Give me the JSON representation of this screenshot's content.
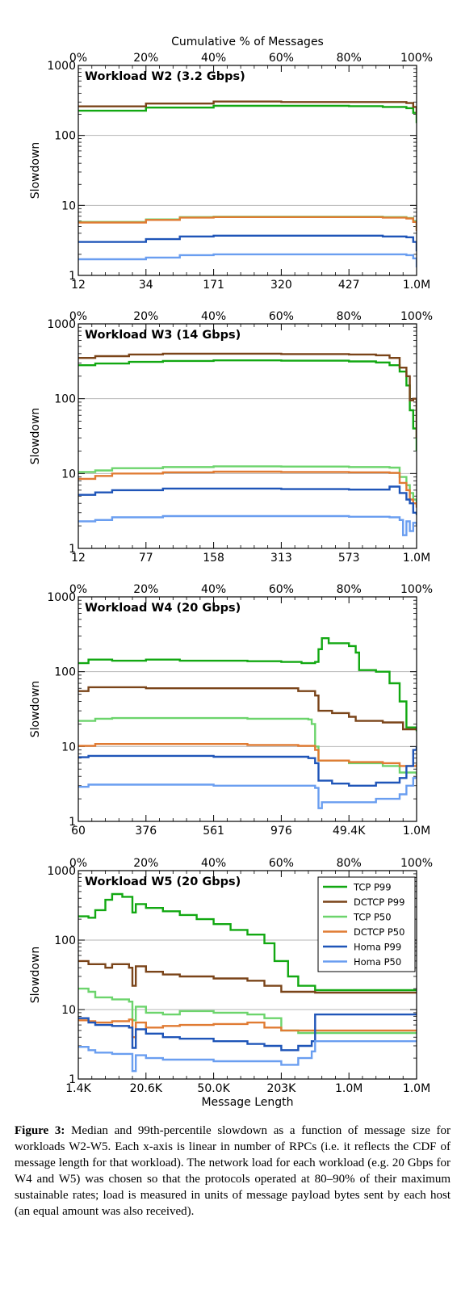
{
  "top_axis_label": "Cumulative % of Messages",
  "top_ticks": [
    "0%",
    "20%",
    "40%",
    "60%",
    "80%",
    "100%"
  ],
  "bottom_axis_label": "Message Length",
  "legend": [
    {
      "label": "TCP P99",
      "color": "#12a812"
    },
    {
      "label": "DCTCP P99",
      "color": "#7a4419"
    },
    {
      "label": "TCP P50",
      "color": "#6cd46c"
    },
    {
      "label": "DCTCP P50",
      "color": "#e07b33"
    },
    {
      "label": "Homa P99",
      "color": "#1f55b8"
    },
    {
      "label": "Homa P50",
      "color": "#6a9ef0"
    }
  ],
  "caption": {
    "label": "Figure 3:",
    "text": "Median and 99th-percentile slowdown as a function of message size for workloads W2-W5. Each x-axis is linear in number of RPCs (i.e. it reflects the CDF of message length for that workload). The network load for each workload (e.g. 20 Gbps for W4 and W5) was chosen so that the protocols operated at 80–90% of their maximum sustainable rates; load is measured in units of message payload bytes sent by each host (an equal amount was also received)."
  },
  "chart_data": [
    {
      "type": "line",
      "title": "Workload W2 (3.2 Gbps)",
      "ylabel": "Slowdown",
      "yscale": "log",
      "ylim": [
        1,
        1000
      ],
      "yticks": [
        "1",
        "10",
        "100",
        "1000"
      ],
      "xlim": [
        0,
        100
      ],
      "x_tick_labels": [
        "12",
        "34",
        "171",
        "320",
        "427",
        "1.0M"
      ],
      "grid": "horizontal",
      "series": [
        {
          "name": "TCP P99",
          "x": [
            0,
            16,
            20,
            40,
            60,
            80,
            90,
            97,
            99,
            100
          ],
          "y": [
            225,
            225,
            250,
            265,
            265,
            262,
            255,
            245,
            210,
            150
          ]
        },
        {
          "name": "DCTCP P99",
          "x": [
            0,
            16,
            20,
            40,
            60,
            80,
            90,
            97,
            99,
            100
          ],
          "y": [
            260,
            260,
            285,
            305,
            300,
            300,
            300,
            290,
            255,
            200
          ]
        },
        {
          "name": "TCP P50",
          "x": [
            0,
            16,
            20,
            30,
            40,
            60,
            80,
            90,
            97,
            99,
            100
          ],
          "y": [
            5.8,
            5.8,
            6.3,
            6.8,
            6.9,
            6.9,
            6.9,
            6.8,
            6.6,
            6.0,
            4.5
          ]
        },
        {
          "name": "DCTCP P50",
          "x": [
            0,
            16,
            20,
            30,
            40,
            60,
            80,
            90,
            97,
            99,
            100
          ],
          "y": [
            5.7,
            5.7,
            6.2,
            6.7,
            6.8,
            6.8,
            6.8,
            6.7,
            6.5,
            5.8,
            4.3
          ]
        },
        {
          "name": "Homa P99",
          "x": [
            0,
            16,
            20,
            30,
            40,
            60,
            80,
            90,
            97,
            99,
            100
          ],
          "y": [
            3.0,
            3.0,
            3.3,
            3.6,
            3.7,
            3.7,
            3.7,
            3.6,
            3.5,
            3.0,
            2.2
          ]
        },
        {
          "name": "Homa P50",
          "x": [
            0,
            16,
            20,
            30,
            40,
            60,
            80,
            90,
            97,
            99,
            100
          ],
          "y": [
            1.7,
            1.7,
            1.8,
            1.95,
            2.0,
            2.0,
            2.0,
            2.0,
            1.95,
            1.75,
            1.3
          ]
        }
      ]
    },
    {
      "type": "line",
      "title": "Workload W3 (14 Gbps)",
      "ylabel": "Slowdown",
      "yscale": "log",
      "ylim": [
        1,
        1000
      ],
      "yticks": [
        "1",
        "10",
        "100",
        "1000"
      ],
      "xlim": [
        0,
        100
      ],
      "x_tick_labels": [
        "12",
        "77",
        "158",
        "313",
        "573",
        "1.0M"
      ],
      "grid": "horizontal",
      "series": [
        {
          "name": "TCP P99",
          "x": [
            0,
            5,
            15,
            25,
            40,
            60,
            80,
            88,
            92,
            95,
            97,
            98,
            99,
            100
          ],
          "y": [
            280,
            295,
            310,
            320,
            325,
            322,
            315,
            305,
            280,
            230,
            150,
            70,
            40,
            20
          ]
        },
        {
          "name": "DCTCP P99",
          "x": [
            0,
            5,
            15,
            25,
            40,
            60,
            80,
            88,
            92,
            95,
            97,
            98,
            99,
            100
          ],
          "y": [
            350,
            370,
            390,
            400,
            400,
            395,
            390,
            380,
            350,
            260,
            200,
            95,
            100,
            30
          ]
        },
        {
          "name": "TCP P50",
          "x": [
            0,
            5,
            10,
            25,
            40,
            60,
            80,
            92,
            95,
            97,
            98,
            99,
            100
          ],
          "y": [
            10.5,
            11,
            11.8,
            12.2,
            12.5,
            12.4,
            12.2,
            12.0,
            9.0,
            7.0,
            5.5,
            4.5,
            3.8
          ]
        },
        {
          "name": "DCTCP P50",
          "x": [
            0,
            5,
            10,
            25,
            40,
            60,
            80,
            92,
            95,
            97,
            98,
            99,
            100
          ],
          "y": [
            8.5,
            9.3,
            10.0,
            10.4,
            10.6,
            10.5,
            10.4,
            10.2,
            7.5,
            6.0,
            4.5,
            4.0,
            3.5
          ]
        },
        {
          "name": "Homa P99",
          "x": [
            0,
            5,
            10,
            25,
            40,
            60,
            80,
            88,
            92,
            95,
            97,
            98,
            99,
            100
          ],
          "y": [
            5.2,
            5.6,
            6.0,
            6.3,
            6.3,
            6.2,
            6.1,
            6.1,
            6.7,
            5.5,
            4.5,
            4.0,
            3.0,
            2.8
          ]
        },
        {
          "name": "Homa P50",
          "x": [
            0,
            5,
            10,
            25,
            40,
            60,
            80,
            92,
            95,
            96,
            97,
            98,
            99,
            100
          ],
          "y": [
            2.3,
            2.4,
            2.6,
            2.7,
            2.7,
            2.7,
            2.65,
            2.6,
            2.4,
            1.5,
            2.3,
            1.7,
            2.2,
            2.0
          ]
        }
      ]
    },
    {
      "type": "line",
      "title": "Workload W4 (20 Gbps)",
      "ylabel": "Slowdown",
      "yscale": "log",
      "ylim": [
        1,
        1000
      ],
      "yticks": [
        "1",
        "10",
        "100",
        "1000"
      ],
      "xlim": [
        0,
        100
      ],
      "x_tick_labels": [
        "60",
        "376",
        "561",
        "976",
        "49.4K",
        "1.0M"
      ],
      "grid": "horizontal",
      "series": [
        {
          "name": "TCP P99",
          "x": [
            0,
            3,
            10,
            20,
            30,
            40,
            50,
            60,
            66,
            70,
            71,
            72,
            74,
            80,
            82,
            83,
            88,
            92,
            95,
            97,
            100
          ],
          "y": [
            130,
            145,
            140,
            145,
            140,
            140,
            138,
            135,
            130,
            135,
            200,
            280,
            240,
            220,
            180,
            105,
            100,
            70,
            40,
            18,
            16
          ]
        },
        {
          "name": "DCTCP P99",
          "x": [
            0,
            3,
            20,
            40,
            55,
            65,
            70,
            71,
            75,
            80,
            82,
            90,
            96,
            100
          ],
          "y": [
            55,
            62,
            60,
            60,
            60,
            55,
            48,
            30,
            28,
            25,
            22,
            21,
            17,
            17
          ]
        },
        {
          "name": "TCP P50",
          "x": [
            0,
            5,
            10,
            30,
            50,
            60,
            68,
            69,
            70,
            71,
            80,
            90,
            95,
            100
          ],
          "y": [
            22,
            23.5,
            24,
            24,
            23.5,
            23.5,
            23,
            20,
            10,
            6.5,
            6.0,
            5.5,
            4.5,
            4.2
          ]
        },
        {
          "name": "DCTCP P50",
          "x": [
            0,
            5,
            10,
            30,
            50,
            65,
            70,
            71,
            80,
            90,
            95,
            100
          ],
          "y": [
            10.2,
            10.8,
            10.8,
            10.8,
            10.5,
            10.2,
            9.0,
            6.5,
            6.2,
            6.0,
            5.5,
            5.8
          ]
        },
        {
          "name": "Homa P99",
          "x": [
            0,
            3,
            20,
            40,
            60,
            68,
            70,
            71,
            75,
            80,
            88,
            95,
            97,
            99,
            100
          ],
          "y": [
            7.2,
            7.5,
            7.5,
            7.3,
            7.3,
            7.0,
            6.0,
            3.5,
            3.2,
            3.0,
            3.3,
            3.8,
            5.5,
            9.0,
            10
          ]
        },
        {
          "name": "Homa P50",
          "x": [
            0,
            3,
            20,
            40,
            60,
            68,
            70,
            71,
            72,
            80,
            88,
            95,
            97,
            99,
            100
          ],
          "y": [
            2.9,
            3.1,
            3.1,
            3.0,
            3.0,
            3.0,
            2.8,
            1.5,
            1.8,
            1.8,
            2.0,
            2.3,
            3.0,
            3.8,
            4.0
          ]
        }
      ]
    },
    {
      "type": "line",
      "title": "Workload W5 (20 Gbps)",
      "ylabel": "Slowdown",
      "yscale": "log",
      "ylim": [
        1,
        1000
      ],
      "yticks": [
        "1",
        "10",
        "100",
        "1000"
      ],
      "xlim": [
        0,
        100
      ],
      "x_tick_labels": [
        "1.4K",
        "20.6K",
        "50.0K",
        "203K",
        "1.0M",
        "1.0M"
      ],
      "grid": "horizontal",
      "legend_position": "top-right",
      "series": [
        {
          "name": "TCP P99",
          "x": [
            0,
            3,
            5,
            8,
            10,
            13,
            16,
            17,
            20,
            25,
            30,
            35,
            40,
            45,
            50,
            55,
            58,
            62,
            65,
            70,
            80,
            90,
            100
          ],
          "y": [
            220,
            210,
            270,
            380,
            460,
            420,
            250,
            330,
            290,
            260,
            230,
            200,
            170,
            140,
            120,
            90,
            50,
            30,
            22,
            19,
            19,
            19,
            19
          ]
        },
        {
          "name": "DCTCP P99",
          "x": [
            0,
            3,
            8,
            10,
            15,
            16,
            17,
            20,
            25,
            30,
            40,
            50,
            55,
            60,
            65,
            70,
            80,
            90,
            100
          ],
          "y": [
            50,
            45,
            40,
            45,
            40,
            22,
            42,
            35,
            32,
            30,
            28,
            26,
            22,
            18,
            18,
            17.5,
            17.5,
            17.5,
            17.5
          ]
        },
        {
          "name": "TCP P50",
          "x": [
            0,
            3,
            5,
            10,
            15,
            16,
            17,
            20,
            25,
            30,
            40,
            50,
            55,
            60,
            65,
            70,
            80,
            90,
            100
          ],
          "y": [
            20,
            18,
            15,
            14,
            13,
            7,
            11,
            9,
            8.5,
            9.5,
            9,
            8.5,
            7.5,
            5,
            4.6,
            4.6,
            4.6,
            4.6,
            4.6
          ]
        },
        {
          "name": "DCTCP P50",
          "x": [
            0,
            3,
            5,
            10,
            15,
            16,
            17,
            20,
            25,
            30,
            40,
            50,
            55,
            60,
            65,
            70,
            80,
            90,
            100
          ],
          "y": [
            7.0,
            6.8,
            6.5,
            6.8,
            7.2,
            4.0,
            6.5,
            5.5,
            5.8,
            6.0,
            6.2,
            6.5,
            5.5,
            5.0,
            5.0,
            5.0,
            5.0,
            5.0,
            5.0
          ]
        },
        {
          "name": "Homa P99",
          "x": [
            0,
            3,
            5,
            10,
            15,
            16,
            17,
            20,
            25,
            30,
            40,
            50,
            55,
            60,
            65,
            69,
            70,
            80,
            90,
            100
          ],
          "y": [
            7.5,
            6.5,
            6.0,
            5.8,
            5.5,
            2.8,
            5.2,
            4.5,
            4.0,
            3.8,
            3.5,
            3.2,
            3.0,
            2.6,
            3.0,
            3.5,
            8.5,
            8.5,
            8.5,
            8.5
          ]
        },
        {
          "name": "Homa P50",
          "x": [
            0,
            3,
            5,
            10,
            15,
            16,
            17,
            20,
            25,
            30,
            40,
            50,
            60,
            65,
            69,
            70,
            80,
            90,
            100
          ],
          "y": [
            2.9,
            2.6,
            2.4,
            2.3,
            2.3,
            1.3,
            2.2,
            2.0,
            1.9,
            1.9,
            1.8,
            1.8,
            1.6,
            2.0,
            2.5,
            3.5,
            3.5,
            3.5,
            3.5
          ]
        }
      ]
    }
  ]
}
